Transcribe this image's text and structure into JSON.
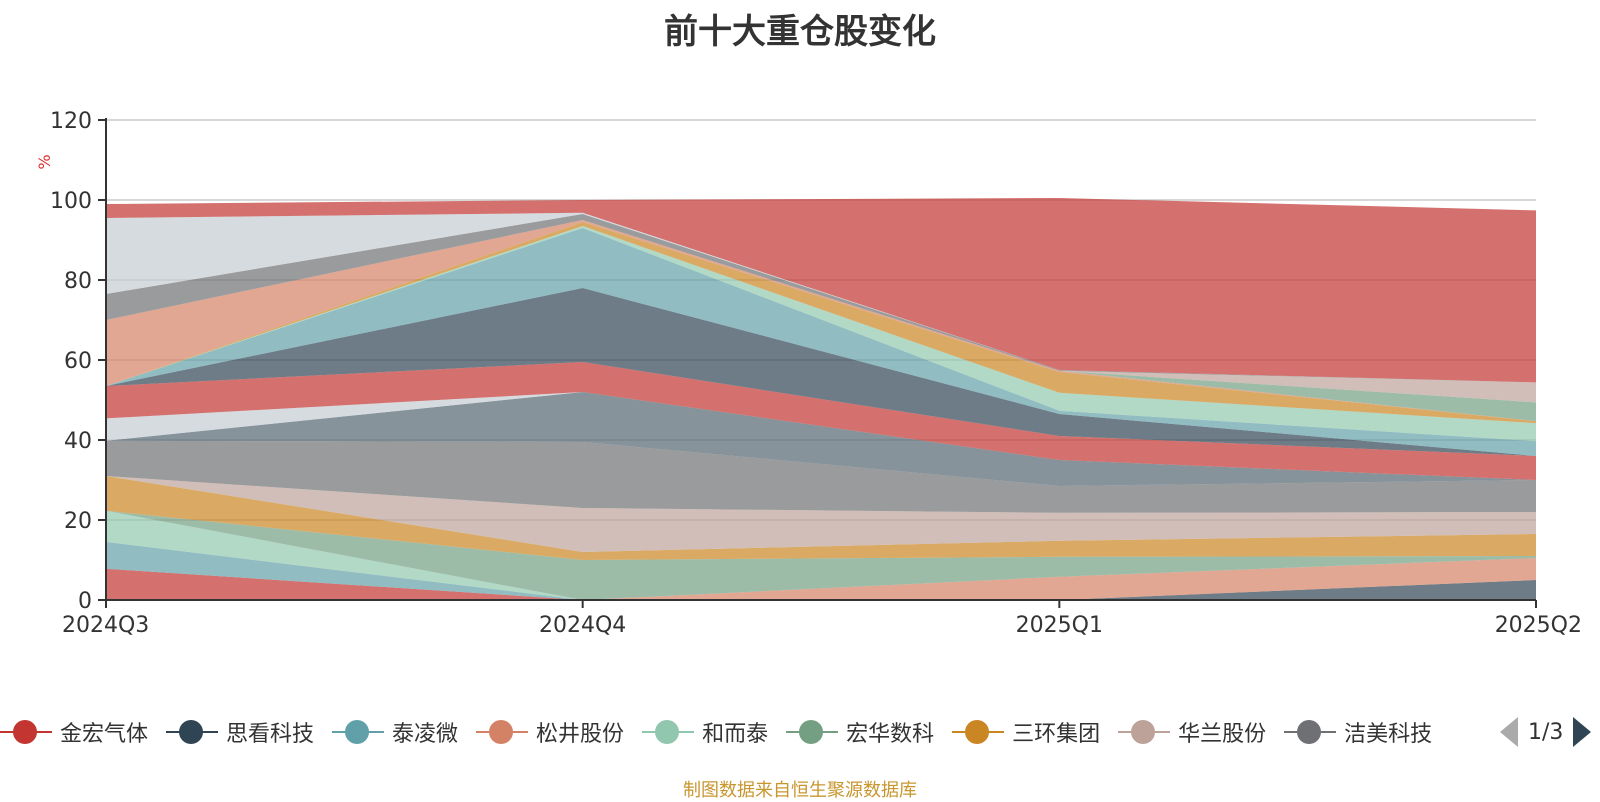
{
  "chart_data": {
    "type": "area",
    "title": "前十大重仓股变化",
    "ylabel": "%",
    "ylim": [
      0,
      120
    ],
    "yticks": [
      0,
      20,
      40,
      60,
      80,
      100,
      120
    ],
    "categories": [
      "2024Q3",
      "2024Q4",
      "2025Q1",
      "2025Q2"
    ],
    "series": [
      {
        "name": "金宏气体",
        "color": "#c23531",
        "values": [
          7.8,
          0,
          0,
          0
        ]
      },
      {
        "name": "思看科技",
        "color": "#2f4554",
        "values": [
          0,
          0,
          0,
          5
        ]
      },
      {
        "name": "泰凌微",
        "color": "#61a0a8",
        "values": [
          6.7,
          0,
          0,
          0
        ]
      },
      {
        "name": "松井股份",
        "color": "#d48265",
        "values": [
          0,
          0,
          5.8,
          5.5
        ]
      },
      {
        "name": "和而泰",
        "color": "#91c7ae",
        "values": [
          7.8,
          0,
          0,
          0
        ]
      },
      {
        "name": "宏华数科",
        "color": "#749f83",
        "values": [
          0,
          10,
          5,
          0.5
        ]
      },
      {
        "name": "三环集团",
        "color": "#ca8622",
        "values": [
          8.7,
          2,
          4,
          5.5
        ]
      },
      {
        "name": "华兰股份",
        "color": "#bda29a",
        "values": [
          0,
          11,
          7,
          5.5
        ]
      },
      {
        "name": "洁美科技",
        "color": "#6e7074",
        "values": [
          8.8,
          16.5,
          6.7,
          8
        ]
      },
      {
        "name": "",
        "color": "#546570",
        "values": [
          0,
          12.5,
          6.5,
          0
        ]
      },
      {
        "name": "",
        "color": "#c4ccd3",
        "values": [
          5.6,
          0,
          0,
          0
        ]
      },
      {
        "name": "",
        "color": "#c23531",
        "values": [
          8.1,
          7.5,
          6,
          6
        ]
      },
      {
        "name": "",
        "color": "#2f4554",
        "values": [
          0,
          18.5,
          5.5,
          0
        ]
      },
      {
        "name": "",
        "color": "#61a0a8",
        "values": [
          0,
          15,
          0.8,
          3.7
        ]
      },
      {
        "name": "",
        "color": "#91c7ae",
        "values": [
          0,
          0.5,
          4.5,
          4.5
        ]
      },
      {
        "name": "",
        "color": "#ca8622",
        "values": [
          0,
          1,
          5.2,
          0.5
        ]
      },
      {
        "name": "",
        "color": "#d48265",
        "values": [
          16.5,
          0.5,
          0.3,
          0
        ]
      },
      {
        "name": "",
        "color": "#749f83",
        "values": [
          0,
          0,
          0,
          4.7
        ]
      },
      {
        "name": "",
        "color": "#bda29a",
        "values": [
          0,
          0,
          0,
          5
        ]
      },
      {
        "name": "",
        "color": "#6e7074",
        "values": [
          6.5,
          1.5,
          0.2,
          0
        ]
      },
      {
        "name": "",
        "color": "#c4ccd3",
        "values": [
          19,
          0.3,
          0,
          0
        ]
      },
      {
        "name": "",
        "color": "#c23531",
        "values": [
          3.5,
          3.2,
          43,
          43
        ]
      }
    ]
  },
  "legend": {
    "items": [
      {
        "label": "金宏气体",
        "color": "#c23531"
      },
      {
        "label": "思看科技",
        "color": "#2f4554"
      },
      {
        "label": "泰凌微",
        "color": "#61a0a8"
      },
      {
        "label": "松井股份",
        "color": "#d48265"
      },
      {
        "label": "和而泰",
        "color": "#91c7ae"
      },
      {
        "label": "宏华数科",
        "color": "#749f83"
      },
      {
        "label": "三环集团",
        "color": "#ca8622"
      },
      {
        "label": "华兰股份",
        "color": "#bda29a"
      },
      {
        "label": "洁美科技",
        "color": "#6e7074"
      }
    ],
    "page_text": "1/3"
  },
  "source_text": "制图数据来自恒生聚源数据库"
}
